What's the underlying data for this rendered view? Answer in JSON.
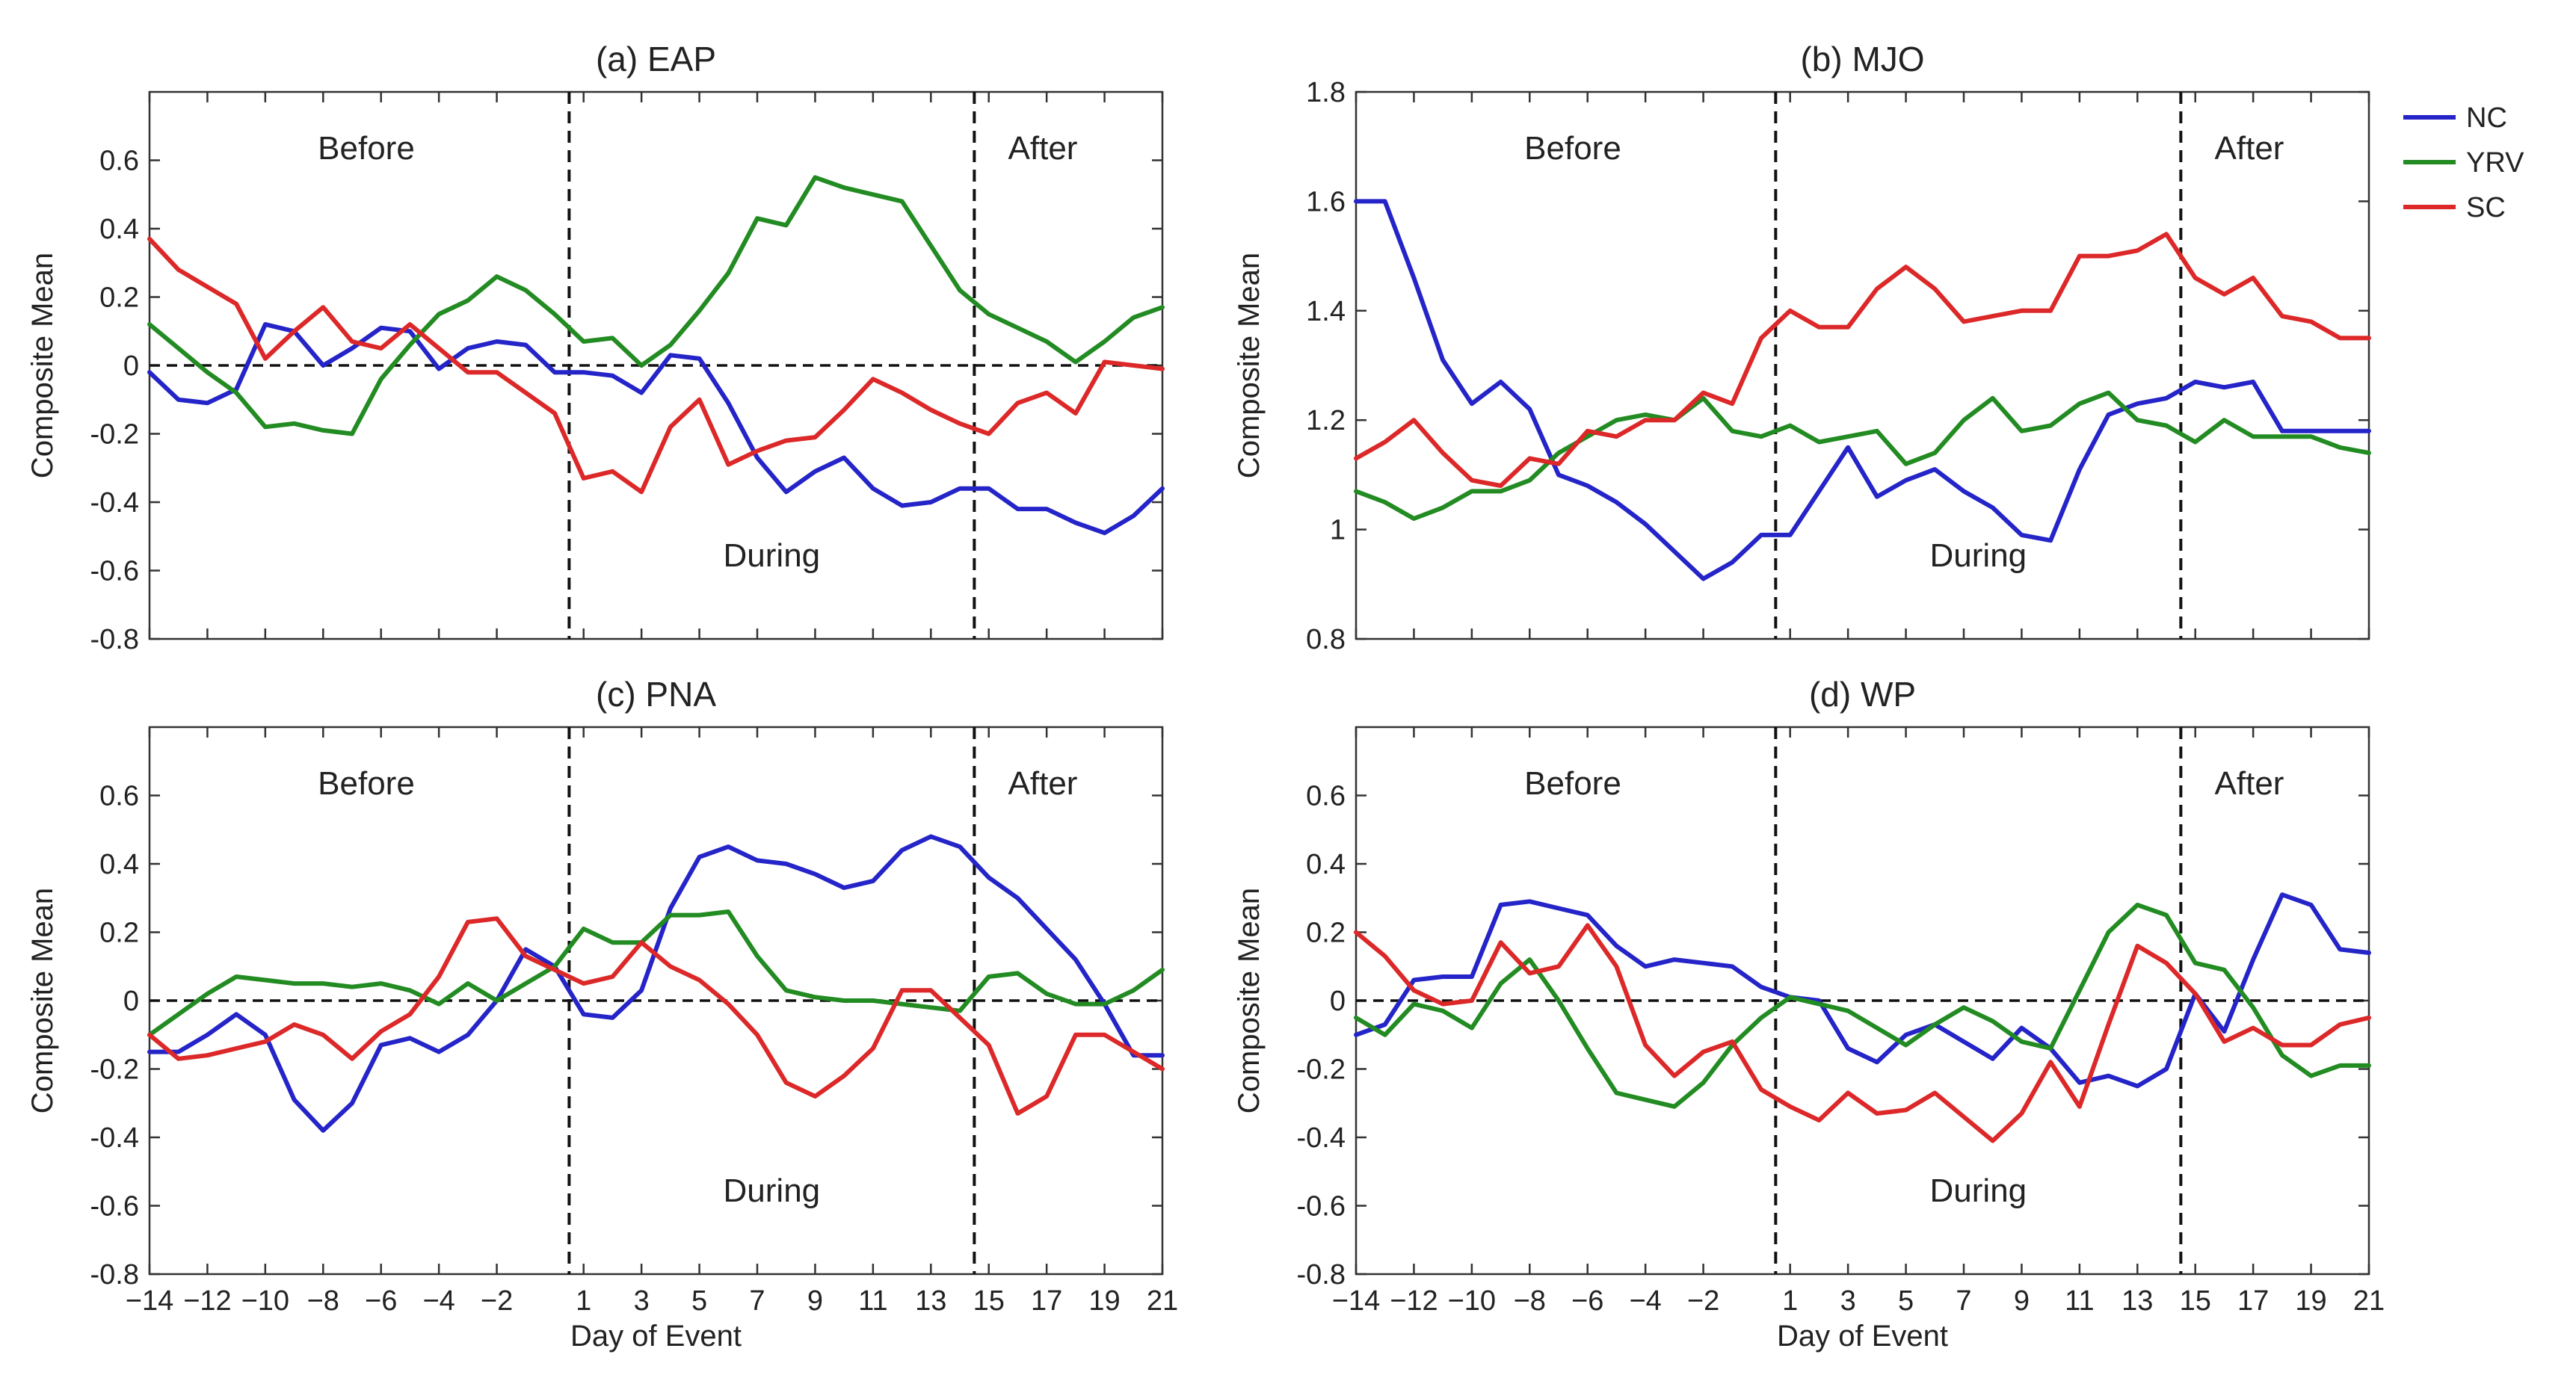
{
  "legend": [
    {
      "name": "NC",
      "color": "#2424c8"
    },
    {
      "name": "YRV",
      "color": "#228b22"
    },
    {
      "name": "SC",
      "color": "#dc2828"
    }
  ],
  "region_labels": {
    "before": "Before",
    "during": "During",
    "after": "After"
  },
  "chart_data": [
    {
      "type": "line",
      "title": "(a) EAP",
      "xlabel": "",
      "ylabel": "Composite Mean",
      "x": [
        -14,
        -13,
        -12,
        -11,
        -10,
        -9,
        -8,
        -7,
        -6,
        -5,
        -4,
        -3,
        -2,
        -1,
        0,
        1,
        2,
        3,
        4,
        5,
        6,
        7,
        8,
        9,
        10,
        11,
        12,
        13,
        14,
        15,
        16,
        17,
        18,
        19,
        20,
        21
      ],
      "xlim": [
        -14,
        21
      ],
      "ylim": [
        -0.8,
        0.8
      ],
      "xticks": [
        -14,
        -12,
        -10,
        -8,
        -6,
        -4,
        -2,
        1,
        3,
        5,
        7,
        9,
        11,
        13,
        15,
        17,
        19,
        21
      ],
      "yticks": [
        -0.8,
        -0.6,
        -0.4,
        -0.2,
        0,
        0.2,
        0.4,
        0.6
      ],
      "ytick_labels": [
        "-0.8",
        "-0.6",
        "-0.4",
        "-0.2",
        "0",
        "0.2",
        "0.4",
        "0.6"
      ],
      "show_xticklabels": false,
      "event_lines": [
        0.5,
        14.5
      ],
      "zero_line": 0,
      "series": [
        {
          "name": "NC",
          "values": [
            -0.02,
            -0.1,
            -0.11,
            -0.07,
            0.12,
            0.1,
            0.0,
            0.05,
            0.11,
            0.1,
            -0.01,
            0.05,
            0.07,
            0.06,
            -0.02,
            -0.02,
            -0.03,
            -0.08,
            0.03,
            0.02,
            -0.11,
            -0.27,
            -0.37,
            -0.31,
            -0.27,
            -0.36,
            -0.41,
            -0.4,
            -0.36,
            -0.36,
            -0.42,
            -0.42,
            -0.46,
            -0.49,
            -0.44,
            -0.36
          ]
        },
        {
          "name": "YRV",
          "values": [
            0.12,
            0.05,
            -0.02,
            -0.08,
            -0.18,
            -0.17,
            -0.19,
            -0.2,
            -0.04,
            0.06,
            0.15,
            0.19,
            0.26,
            0.22,
            0.15,
            0.07,
            0.08,
            0.0,
            0.06,
            0.16,
            0.27,
            0.43,
            0.41,
            0.55,
            0.52,
            0.5,
            0.48,
            0.35,
            0.22,
            0.15,
            0.11,
            0.07,
            0.01,
            0.07,
            0.14,
            0.17
          ]
        },
        {
          "name": "SC",
          "values": [
            0.37,
            0.28,
            0.23,
            0.18,
            0.02,
            0.1,
            0.17,
            0.07,
            0.05,
            0.12,
            0.05,
            -0.02,
            -0.02,
            -0.08,
            -0.14,
            -0.33,
            -0.31,
            -0.37,
            -0.18,
            -0.1,
            -0.29,
            -0.25,
            -0.22,
            -0.21,
            -0.13,
            -0.04,
            -0.08,
            -0.13,
            -0.17,
            -0.2,
            -0.11,
            -0.08,
            -0.14,
            0.01,
            0.0,
            -0.01
          ]
        }
      ]
    },
    {
      "type": "line",
      "title": "(b) MJO",
      "xlabel": "",
      "ylabel": "Composite Mean",
      "x": [
        -14,
        -13,
        -12,
        -11,
        -10,
        -9,
        -8,
        -7,
        -6,
        -5,
        -4,
        -3,
        -2,
        -1,
        0,
        1,
        2,
        3,
        4,
        5,
        6,
        7,
        8,
        9,
        10,
        11,
        12,
        13,
        14,
        15,
        16,
        17,
        18,
        19,
        20,
        21
      ],
      "xlim": [
        -14,
        21
      ],
      "ylim": [
        0.8,
        1.8
      ],
      "xticks": [
        -14,
        -12,
        -10,
        -8,
        -6,
        -4,
        -2,
        1,
        3,
        5,
        7,
        9,
        11,
        13,
        15,
        17,
        19,
        21
      ],
      "yticks": [
        0.8,
        1.0,
        1.2,
        1.4,
        1.6,
        1.8
      ],
      "ytick_labels": [
        "0.8",
        "1",
        "1.2",
        "1.4",
        "1.6",
        "1.8"
      ],
      "show_xticklabels": false,
      "event_lines": [
        0.5,
        14.5
      ],
      "zero_line": null,
      "series": [
        {
          "name": "NC",
          "values": [
            1.6,
            1.6,
            1.46,
            1.31,
            1.23,
            1.27,
            1.22,
            1.1,
            1.08,
            1.05,
            1.01,
            0.96,
            0.91,
            0.94,
            0.99,
            0.99,
            1.07,
            1.15,
            1.06,
            1.09,
            1.11,
            1.07,
            1.04,
            0.99,
            0.98,
            1.11,
            1.21,
            1.23,
            1.24,
            1.27,
            1.26,
            1.27,
            1.18,
            1.18,
            1.18,
            1.18
          ]
        },
        {
          "name": "YRV",
          "values": [
            1.07,
            1.05,
            1.02,
            1.04,
            1.07,
            1.07,
            1.09,
            1.14,
            1.17,
            1.2,
            1.21,
            1.2,
            1.24,
            1.18,
            1.17,
            1.19,
            1.16,
            1.17,
            1.18,
            1.12,
            1.14,
            1.2,
            1.24,
            1.18,
            1.19,
            1.23,
            1.25,
            1.2,
            1.19,
            1.16,
            1.2,
            1.17,
            1.17,
            1.17,
            1.15,
            1.14
          ]
        },
        {
          "name": "SC",
          "values": [
            1.13,
            1.16,
            1.2,
            1.14,
            1.09,
            1.08,
            1.13,
            1.12,
            1.18,
            1.17,
            1.2,
            1.2,
            1.25,
            1.23,
            1.35,
            1.4,
            1.37,
            1.37,
            1.44,
            1.48,
            1.44,
            1.38,
            1.39,
            1.4,
            1.4,
            1.5,
            1.5,
            1.51,
            1.54,
            1.46,
            1.43,
            1.46,
            1.39,
            1.38,
            1.35,
            1.35
          ]
        }
      ]
    },
    {
      "type": "line",
      "title": "(c) PNA",
      "xlabel": "Day of Event",
      "ylabel": "Composite Mean",
      "x": [
        -14,
        -13,
        -12,
        -11,
        -10,
        -9,
        -8,
        -7,
        -6,
        -5,
        -4,
        -3,
        -2,
        -1,
        0,
        1,
        2,
        3,
        4,
        5,
        6,
        7,
        8,
        9,
        10,
        11,
        12,
        13,
        14,
        15,
        16,
        17,
        18,
        19,
        20,
        21
      ],
      "xlim": [
        -14,
        21
      ],
      "ylim": [
        -0.8,
        0.8
      ],
      "xticks": [
        -14,
        -12,
        -10,
        -8,
        -6,
        -4,
        -2,
        1,
        3,
        5,
        7,
        9,
        11,
        13,
        15,
        17,
        19,
        21
      ],
      "xtick_labels": [
        "−14",
        "−12",
        "−10",
        "−8",
        "−6",
        "−4",
        "−2",
        "1",
        "3",
        "5",
        "7",
        "9",
        "11",
        "13",
        "15",
        "17",
        "19",
        "21"
      ],
      "yticks": [
        -0.8,
        -0.6,
        -0.4,
        -0.2,
        0,
        0.2,
        0.4,
        0.6
      ],
      "ytick_labels": [
        "-0.8",
        "-0.6",
        "-0.4",
        "-0.2",
        "0",
        "0.2",
        "0.4",
        "0.6"
      ],
      "show_xticklabels": true,
      "event_lines": [
        0.5,
        14.5
      ],
      "zero_line": 0,
      "series": [
        {
          "name": "NC",
          "values": [
            -0.15,
            -0.15,
            -0.1,
            -0.04,
            -0.1,
            -0.29,
            -0.38,
            -0.3,
            -0.13,
            -0.11,
            -0.15,
            -0.1,
            0.0,
            0.15,
            0.1,
            -0.04,
            -0.05,
            0.03,
            0.27,
            0.42,
            0.45,
            0.41,
            0.4,
            0.37,
            0.33,
            0.35,
            0.44,
            0.48,
            0.45,
            0.36,
            0.3,
            0.21,
            0.12,
            -0.01,
            -0.16,
            -0.16
          ]
        },
        {
          "name": "YRV",
          "values": [
            -0.1,
            -0.04,
            0.02,
            0.07,
            0.06,
            0.05,
            0.05,
            0.04,
            0.05,
            0.03,
            -0.01,
            0.05,
            0.0,
            0.05,
            0.1,
            0.21,
            0.17,
            0.17,
            0.25,
            0.25,
            0.26,
            0.13,
            0.03,
            0.01,
            0.0,
            0.0,
            -0.01,
            -0.02,
            -0.03,
            0.07,
            0.08,
            0.02,
            -0.01,
            -0.01,
            0.03,
            0.09
          ]
        },
        {
          "name": "SC",
          "values": [
            -0.1,
            -0.17,
            -0.16,
            -0.14,
            -0.12,
            -0.07,
            -0.1,
            -0.17,
            -0.09,
            -0.04,
            0.07,
            0.23,
            0.24,
            0.13,
            0.09,
            0.05,
            0.07,
            0.17,
            0.1,
            0.06,
            -0.01,
            -0.1,
            -0.24,
            -0.28,
            -0.22,
            -0.14,
            0.03,
            0.03,
            -0.05,
            -0.13,
            -0.33,
            -0.28,
            -0.1,
            -0.1,
            -0.15,
            -0.2
          ]
        }
      ]
    },
    {
      "type": "line",
      "title": "(d) WP",
      "xlabel": "Day of Event",
      "ylabel": "Composite Mean",
      "x": [
        -14,
        -13,
        -12,
        -11,
        -10,
        -9,
        -8,
        -7,
        -6,
        -5,
        -4,
        -3,
        -2,
        -1,
        0,
        1,
        2,
        3,
        4,
        5,
        6,
        7,
        8,
        9,
        10,
        11,
        12,
        13,
        14,
        15,
        16,
        17,
        18,
        19,
        20,
        21
      ],
      "xlim": [
        -14,
        21
      ],
      "ylim": [
        -0.8,
        0.8
      ],
      "xticks": [
        -14,
        -12,
        -10,
        -8,
        -6,
        -4,
        -2,
        1,
        3,
        5,
        7,
        9,
        11,
        13,
        15,
        17,
        19,
        21
      ],
      "xtick_labels": [
        "−14",
        "−12",
        "−10",
        "−8",
        "−6",
        "−4",
        "−2",
        "1",
        "3",
        "5",
        "7",
        "9",
        "11",
        "13",
        "15",
        "17",
        "19",
        "21"
      ],
      "yticks": [
        -0.8,
        -0.6,
        -0.4,
        -0.2,
        0,
        0.2,
        0.4,
        0.6
      ],
      "ytick_labels": [
        "-0.8",
        "-0.6",
        "-0.4",
        "-0.2",
        "0",
        "0.2",
        "0.4",
        "0.6"
      ],
      "show_xticklabels": true,
      "event_lines": [
        0.5,
        14.5
      ],
      "zero_line": 0,
      "series": [
        {
          "name": "NC",
          "values": [
            -0.1,
            -0.07,
            0.06,
            0.07,
            0.07,
            0.28,
            0.29,
            0.27,
            0.25,
            0.16,
            0.1,
            0.12,
            0.11,
            0.1,
            0.04,
            0.01,
            0.0,
            -0.14,
            -0.18,
            -0.1,
            -0.07,
            -0.12,
            -0.17,
            -0.08,
            -0.14,
            -0.24,
            -0.22,
            -0.25,
            -0.2,
            0.02,
            -0.09,
            0.12,
            0.31,
            0.28,
            0.15,
            0.14
          ]
        },
        {
          "name": "YRV",
          "values": [
            -0.05,
            -0.1,
            -0.01,
            -0.03,
            -0.08,
            0.05,
            0.12,
            0.0,
            -0.14,
            -0.27,
            -0.29,
            -0.31,
            -0.24,
            -0.13,
            -0.05,
            0.01,
            -0.01,
            -0.03,
            -0.08,
            -0.13,
            -0.07,
            -0.02,
            -0.06,
            -0.12,
            -0.14,
            0.03,
            0.2,
            0.28,
            0.25,
            0.11,
            0.09,
            -0.02,
            -0.16,
            -0.22,
            -0.19,
            -0.19
          ]
        },
        {
          "name": "SC",
          "values": [
            0.2,
            0.13,
            0.03,
            -0.01,
            0.0,
            0.17,
            0.08,
            0.1,
            0.22,
            0.1,
            -0.13,
            -0.22,
            -0.15,
            -0.12,
            -0.26,
            -0.31,
            -0.35,
            -0.27,
            -0.33,
            -0.32,
            -0.27,
            -0.34,
            -0.41,
            -0.33,
            -0.18,
            -0.31,
            -0.07,
            0.16,
            0.11,
            0.02,
            -0.12,
            -0.08,
            -0.13,
            -0.13,
            -0.07,
            -0.05
          ]
        }
      ]
    }
  ]
}
